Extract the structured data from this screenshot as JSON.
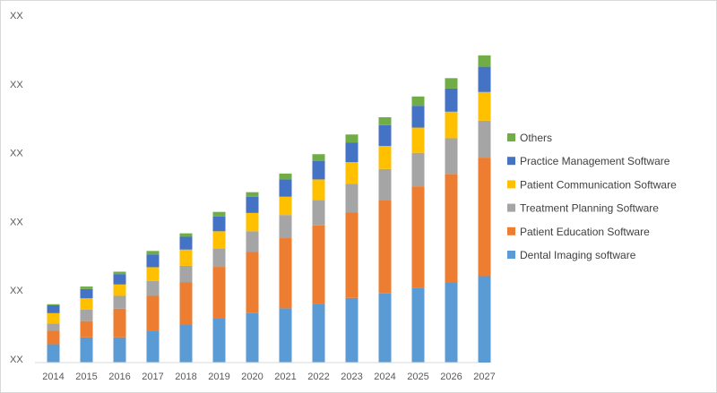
{
  "chart_data": {
    "type": "bar",
    "stacked": true,
    "categories": [
      "2014",
      "2015",
      "2016",
      "2017",
      "2018",
      "2019",
      "2020",
      "2021",
      "2022",
      "2023",
      "2024",
      "2025",
      "2026",
      "2027"
    ],
    "y_tick_labels": [
      "XX",
      "XX",
      "XX",
      "XX",
      "XX",
      "XX"
    ],
    "ylim": [
      0,
      100
    ],
    "grid": false,
    "legend_position": "right",
    "series": [
      {
        "name": "Dental Imaging software",
        "color": "#5B9BD5",
        "values": [
          5.3,
          7.3,
          7.3,
          9.3,
          11.0,
          12.7,
          14.3,
          15.7,
          17.0,
          18.7,
          20.0,
          21.7,
          23.3,
          25.0
        ]
      },
      {
        "name": "Patient Education Software",
        "color": "#ED7D31",
        "values": [
          4.0,
          4.7,
          8.3,
          10.0,
          12.3,
          15.0,
          17.7,
          20.3,
          22.7,
          24.7,
          27.0,
          29.3,
          31.3,
          34.3
        ]
      },
      {
        "name": "Treatment Planning Software",
        "color": "#A5A5A5",
        "values": [
          2.0,
          3.3,
          3.7,
          4.3,
          4.7,
          5.3,
          6.0,
          6.7,
          7.3,
          8.3,
          9.0,
          9.7,
          10.3,
          10.7
        ]
      },
      {
        "name": "Patient Communication Software",
        "color": "#FFC000",
        "values": [
          3.0,
          3.3,
          3.3,
          4.0,
          4.7,
          5.0,
          5.3,
          5.3,
          6.0,
          6.3,
          6.7,
          7.3,
          7.7,
          8.3
        ]
      },
      {
        "name": "Practice Management Software",
        "color": "#4472C4",
        "values": [
          2.3,
          2.7,
          3.0,
          3.7,
          3.7,
          4.3,
          4.7,
          5.0,
          5.3,
          5.7,
          6.0,
          6.3,
          6.7,
          7.3
        ]
      },
      {
        "name": "Others",
        "color": "#70AD47",
        "values": [
          0.3,
          0.7,
          0.7,
          1.0,
          1.0,
          1.3,
          1.3,
          1.7,
          2.0,
          2.3,
          2.3,
          2.7,
          3.0,
          3.3
        ]
      }
    ]
  }
}
